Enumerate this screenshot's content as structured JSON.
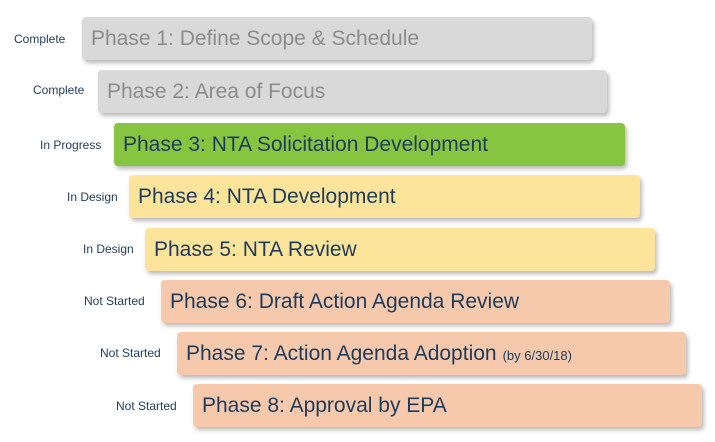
{
  "phases": [
    {
      "status": "Complete",
      "label": "Phase 1: Define Scope & Schedule",
      "note": "",
      "state": "complete"
    },
    {
      "status": "Complete",
      "label": "Phase 2: Area of Focus",
      "note": "",
      "state": "complete"
    },
    {
      "status": "In Progress",
      "label": "Phase 3: NTA Solicitation Development",
      "note": "",
      "state": "inprogress"
    },
    {
      "status": "In Design",
      "label": "Phase 4: NTA Development",
      "note": "",
      "state": "indesign"
    },
    {
      "status": "In Design",
      "label": "Phase 5: NTA Review",
      "note": "",
      "state": "indesign"
    },
    {
      "status": "Not Started",
      "label": "Phase 6: Draft Action Agenda Review",
      "note": "",
      "state": "notstarted"
    },
    {
      "status": "Not Started",
      "label": "Phase 7: Action Agenda Adoption",
      "note": "(by 6/30/18)",
      "state": "notstarted"
    },
    {
      "status": "Not Started",
      "label": "Phase 8: Approval by EPA",
      "note": "",
      "state": "notstarted"
    }
  ],
  "colors": {
    "complete": "#d9d9d9",
    "inprogress": "#86c540",
    "indesign": "#fde49b",
    "notstarted": "#f7c9ac"
  }
}
